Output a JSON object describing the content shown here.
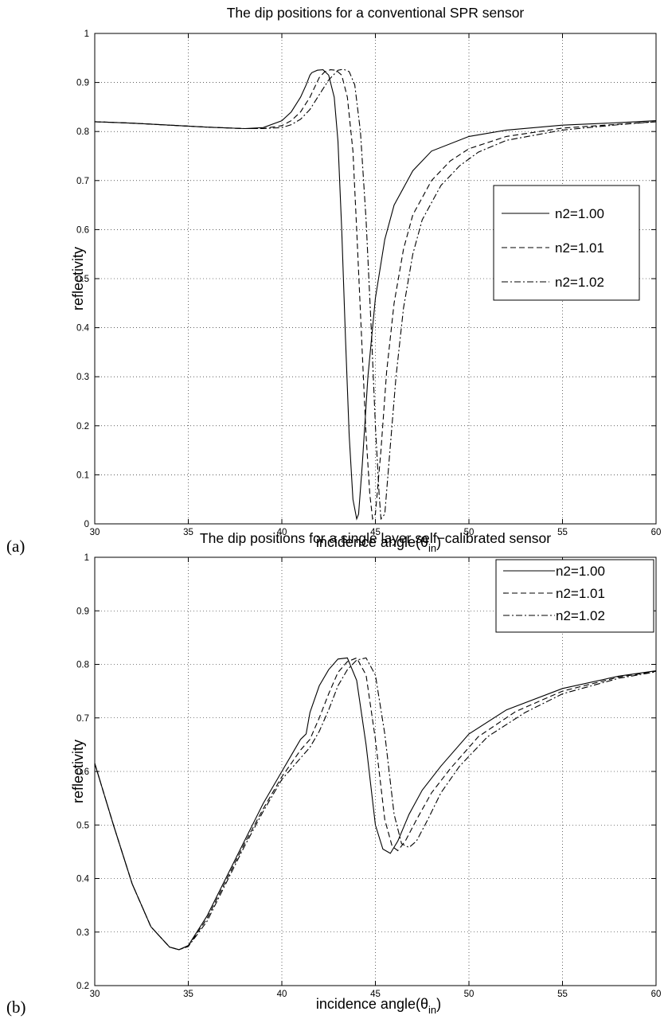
{
  "chart_data": [
    {
      "type": "line",
      "panel_label": "(a)",
      "title": "The dip positions for a conventional SPR sensor",
      "xlabel": "incidence angle(θ",
      "xlabel_sub": "in",
      "xlabel_close": ")",
      "ylabel": "reflectivity",
      "xlim": [
        30,
        60
      ],
      "ylim": [
        0,
        1
      ],
      "xticks": [
        30,
        35,
        40,
        45,
        50,
        55,
        60
      ],
      "yticks": [
        0,
        0.1,
        0.2,
        0.3,
        0.4,
        0.5,
        0.6,
        0.7,
        0.8,
        0.9,
        1
      ],
      "ytick_labels": [
        "0",
        "0.1",
        "0.2",
        "0.3",
        "0.4",
        "0.5",
        "0.6",
        "0.7",
        "0.8",
        "0.9",
        "1"
      ],
      "grid": true,
      "legend_position": "right",
      "series": [
        {
          "name": "n2=1.00",
          "line_style": "solid",
          "x": [
            30,
            32,
            34,
            36,
            38,
            39,
            40,
            40.5,
            41,
            41.3,
            41.5,
            41.6,
            41.9,
            42.2,
            42.5,
            42.8,
            43.0,
            43.2,
            43.4,
            43.6,
            43.8,
            44.0,
            44.1,
            44.3,
            44.6,
            45.0,
            45.5,
            46,
            47,
            48,
            50,
            52,
            55,
            58,
            60
          ],
          "y": [
            0.82,
            0.817,
            0.813,
            0.809,
            0.806,
            0.808,
            0.822,
            0.84,
            0.87,
            0.895,
            0.915,
            0.92,
            0.925,
            0.926,
            0.915,
            0.87,
            0.78,
            0.6,
            0.38,
            0.18,
            0.05,
            0.01,
            0.02,
            0.12,
            0.3,
            0.46,
            0.58,
            0.65,
            0.72,
            0.76,
            0.79,
            0.803,
            0.813,
            0.818,
            0.822
          ]
        },
        {
          "name": "n2=1.01",
          "line_style": "dashed",
          "x": [
            30,
            32,
            34,
            36,
            38,
            39,
            40,
            40.5,
            41,
            41.5,
            42,
            42.3,
            42.6,
            42.9,
            43.2,
            43.5,
            43.8,
            44.0,
            44.3,
            44.5,
            44.7,
            44.85,
            45.0,
            45.3,
            45.6,
            46,
            46.5,
            47,
            48,
            49,
            50,
            52,
            55,
            58,
            60
          ],
          "y": [
            0.82,
            0.817,
            0.813,
            0.809,
            0.806,
            0.806,
            0.812,
            0.822,
            0.84,
            0.87,
            0.91,
            0.922,
            0.926,
            0.925,
            0.915,
            0.87,
            0.76,
            0.6,
            0.35,
            0.18,
            0.06,
            0.01,
            0.02,
            0.15,
            0.31,
            0.45,
            0.56,
            0.63,
            0.7,
            0.74,
            0.765,
            0.79,
            0.807,
            0.815,
            0.82
          ]
        },
        {
          "name": "n2=1.02",
          "line_style": "dashdot",
          "x": [
            30,
            32,
            34,
            36,
            38,
            39,
            40,
            40.5,
            41,
            41.5,
            42,
            42.5,
            43,
            43.3,
            43.6,
            43.9,
            44.2,
            44.5,
            44.8,
            45.0,
            45.2,
            45.3,
            45.5,
            45.8,
            46.1,
            46.5,
            47,
            47.5,
            48.5,
            49.5,
            50.5,
            52,
            55,
            58,
            60
          ],
          "y": [
            0.82,
            0.817,
            0.813,
            0.809,
            0.806,
            0.806,
            0.808,
            0.814,
            0.825,
            0.845,
            0.875,
            0.905,
            0.925,
            0.927,
            0.922,
            0.895,
            0.8,
            0.62,
            0.38,
            0.2,
            0.06,
            0.01,
            0.02,
            0.16,
            0.3,
            0.44,
            0.55,
            0.62,
            0.69,
            0.73,
            0.758,
            0.782,
            0.803,
            0.814,
            0.82
          ]
        }
      ]
    },
    {
      "type": "line",
      "panel_label": "(b)",
      "title": "The dip positions for a single layer self−calibrated sensor",
      "xlabel": "incidence angle(θ",
      "xlabel_sub": "in",
      "xlabel_close": ")",
      "ylabel": "reflectivity",
      "xlim": [
        30,
        60
      ],
      "ylim": [
        0.2,
        1
      ],
      "xticks": [
        30,
        35,
        40,
        45,
        50,
        55,
        60
      ],
      "yticks": [
        0.2,
        0.3,
        0.4,
        0.5,
        0.6,
        0.7,
        0.8,
        0.9,
        1
      ],
      "ytick_labels": [
        "0.2",
        "0.3",
        "0.4",
        "0.5",
        "0.6",
        "0.7",
        "0.8",
        "0.9",
        "1"
      ],
      "grid": true,
      "legend_position": "top-right",
      "series": [
        {
          "name": "n2=1.00",
          "line_style": "solid",
          "x": [
            30,
            31,
            32,
            33,
            34,
            34.5,
            35,
            36,
            37,
            38,
            39,
            40,
            40.5,
            41,
            41.3,
            41.5,
            42,
            42.5,
            43,
            43.5,
            44,
            44.5,
            45,
            45.4,
            45.8,
            46.2,
            46.8,
            47.5,
            48.5,
            50,
            52,
            55,
            58,
            60
          ],
          "y": [
            0.615,
            0.5,
            0.39,
            0.31,
            0.272,
            0.267,
            0.275,
            0.33,
            0.4,
            0.47,
            0.54,
            0.6,
            0.63,
            0.66,
            0.67,
            0.71,
            0.76,
            0.79,
            0.81,
            0.812,
            0.77,
            0.65,
            0.5,
            0.455,
            0.447,
            0.47,
            0.52,
            0.565,
            0.61,
            0.67,
            0.715,
            0.755,
            0.778,
            0.788
          ]
        },
        {
          "name": "n2=1.01",
          "line_style": "dashed",
          "x": [
            30,
            31,
            32,
            33,
            34,
            34.5,
            35,
            36,
            37,
            38,
            39,
            40,
            40.5,
            41,
            41.5,
            42,
            42.5,
            43,
            43.5,
            44,
            44.5,
            45,
            45.5,
            45.9,
            46.2,
            46.6,
            47.2,
            48,
            49,
            50.5,
            52.5,
            55,
            58,
            60
          ],
          "y": [
            0.615,
            0.5,
            0.39,
            0.31,
            0.272,
            0.267,
            0.274,
            0.325,
            0.395,
            0.465,
            0.53,
            0.59,
            0.615,
            0.64,
            0.66,
            0.7,
            0.745,
            0.785,
            0.805,
            0.812,
            0.78,
            0.66,
            0.51,
            0.46,
            0.452,
            0.47,
            0.51,
            0.56,
            0.605,
            0.665,
            0.712,
            0.75,
            0.776,
            0.787
          ]
        },
        {
          "name": "n2=1.02",
          "line_style": "dashdot",
          "x": [
            30,
            31,
            32,
            33,
            34,
            34.5,
            35,
            36,
            37,
            38,
            39,
            40,
            40.5,
            41,
            41.5,
            42,
            42.5,
            43,
            43.5,
            44,
            44.5,
            45,
            45.5,
            46,
            46.4,
            46.8,
            47.2,
            47.8,
            48.5,
            49.5,
            51,
            53,
            55,
            58,
            60
          ],
          "y": [
            0.615,
            0.5,
            0.39,
            0.31,
            0.272,
            0.267,
            0.273,
            0.32,
            0.39,
            0.46,
            0.525,
            0.585,
            0.605,
            0.625,
            0.645,
            0.675,
            0.715,
            0.76,
            0.79,
            0.808,
            0.812,
            0.78,
            0.67,
            0.52,
            0.465,
            0.458,
            0.47,
            0.51,
            0.56,
            0.61,
            0.665,
            0.71,
            0.745,
            0.774,
            0.786
          ]
        }
      ]
    }
  ]
}
